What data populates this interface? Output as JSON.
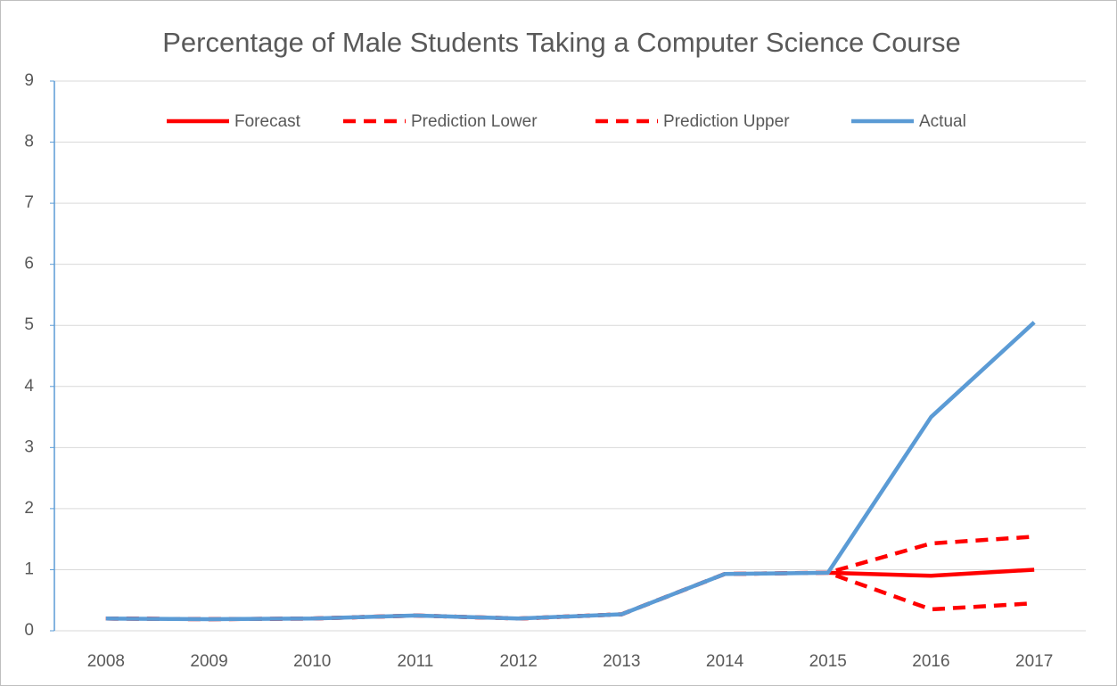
{
  "chart_data": {
    "type": "line",
    "title": "Percentage of Male Students Taking a Computer Science Course",
    "categories": [
      "2008",
      "2009",
      "2010",
      "2011",
      "2012",
      "2013",
      "2014",
      "2015",
      "2016",
      "2017"
    ],
    "series": [
      {
        "name": "Forecast",
        "color": "#ff0000",
        "style": "solid",
        "values": [
          null,
          null,
          null,
          null,
          null,
          null,
          null,
          0.95,
          0.9,
          1.0
        ]
      },
      {
        "name": "Prediction Lower",
        "color": "#ff0000",
        "style": "dashed",
        "values": [
          0.2,
          0.19,
          0.2,
          0.25,
          0.2,
          0.27,
          0.93,
          0.95,
          0.35,
          0.45
        ]
      },
      {
        "name": "Prediction Upper",
        "color": "#ff0000",
        "style": "dashed",
        "values": [
          0.2,
          0.19,
          0.2,
          0.25,
          0.2,
          0.27,
          0.93,
          0.95,
          1.43,
          1.54
        ]
      },
      {
        "name": "Actual",
        "color": "#5b9bd5",
        "style": "solid",
        "values": [
          0.2,
          0.19,
          0.2,
          0.25,
          0.2,
          0.27,
          0.93,
          0.95,
          3.5,
          5.05
        ]
      }
    ],
    "ylim": [
      0,
      9
    ],
    "yticks": [
      0,
      1,
      2,
      3,
      4,
      5,
      6,
      7,
      8,
      9
    ],
    "grid": true,
    "legend": "top"
  }
}
